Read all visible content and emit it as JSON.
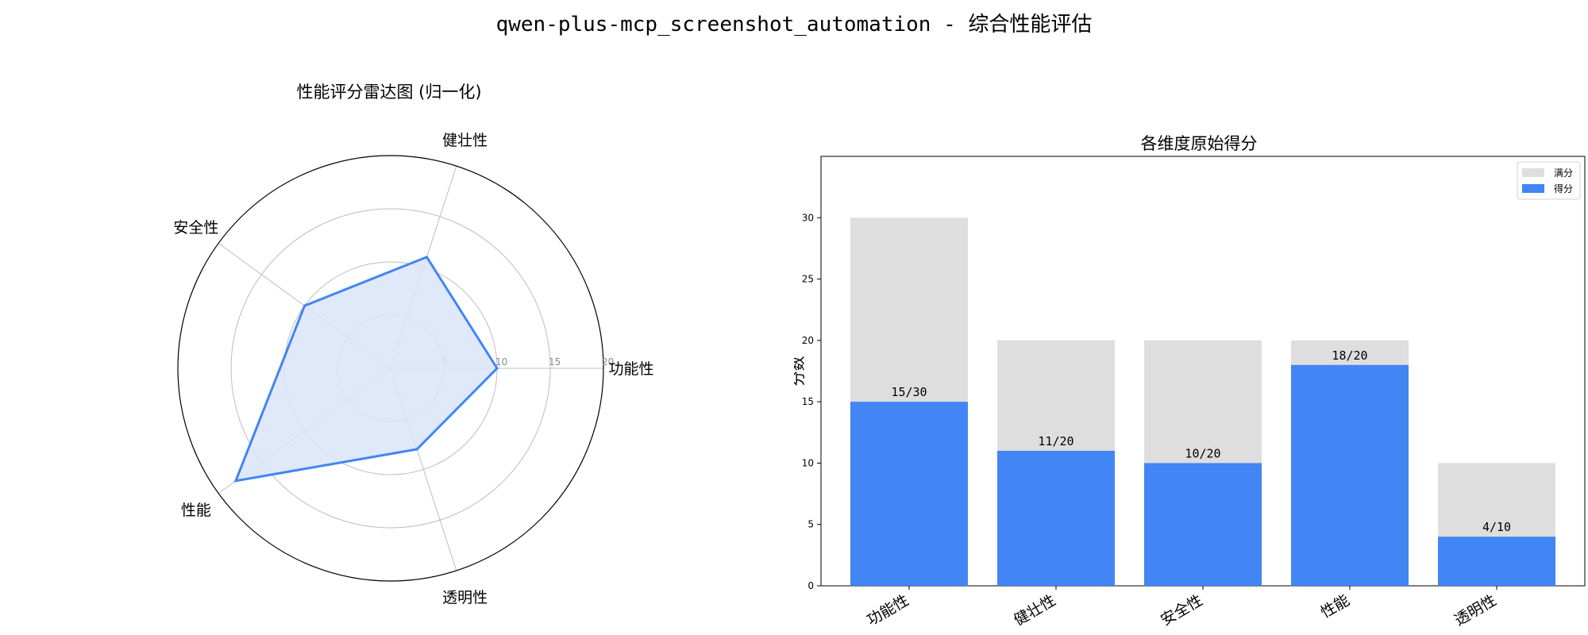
{
  "figure": {
    "title": "qwen-plus-mcp_screenshot_automation - 综合性能评估"
  },
  "chart_data": [
    {
      "type": "radar",
      "title": "性能评分雷达图 (归一化)",
      "axes": [
        "功能性",
        "健壮性",
        "安全性",
        "性能",
        "透明性"
      ],
      "values": [
        10,
        11,
        10,
        18,
        8
      ],
      "radial_ticks": [
        5,
        10,
        15,
        20
      ],
      "rmax": 20,
      "grid": true,
      "colors": {
        "line": "#4285f4",
        "fill": "#dae5f8",
        "grid": "#bdbdbd"
      }
    },
    {
      "type": "bar",
      "title": "各维度原始得分",
      "categories": [
        "功能性",
        "健壮性",
        "安全性",
        "性能",
        "透明性"
      ],
      "ylabel": "分数",
      "ylim": [
        0,
        35
      ],
      "yticks": [
        0,
        5,
        10,
        15,
        20,
        25,
        30
      ],
      "series": [
        {
          "name": "满分",
          "values": [
            30,
            20,
            20,
            20,
            10
          ],
          "color": "#dedede"
        },
        {
          "name": "得分",
          "values": [
            15,
            11,
            10,
            18,
            4
          ],
          "color": "#4285f4"
        }
      ],
      "data_labels": [
        "15/30",
        "11/20",
        "10/20",
        "18/20",
        "4/10"
      ],
      "legend": "top-right"
    }
  ]
}
